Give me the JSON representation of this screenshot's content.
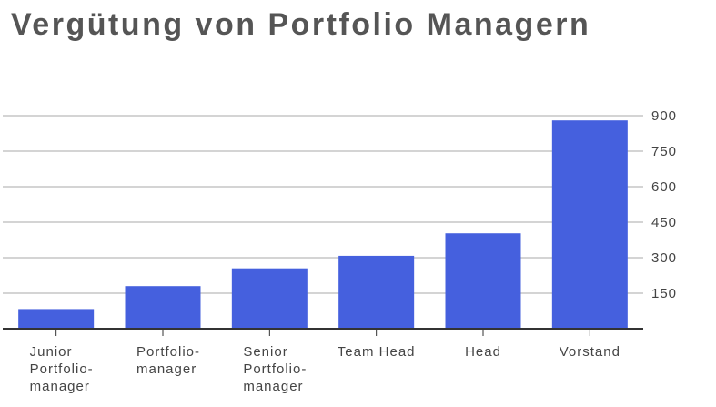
{
  "chart_data": {
    "type": "bar",
    "title": "Vergütung von Portfolio Managern",
    "categories": [
      [
        "Junior",
        "Portfolio-",
        "manager"
      ],
      [
        "Portfolio-",
        "manager"
      ],
      [
        "Senior",
        "Portfolio-",
        "manager"
      ],
      [
        "Team Head"
      ],
      [
        "Head"
      ],
      [
        "Vorstand"
      ]
    ],
    "values": [
      83,
      180,
      255,
      308,
      403,
      880
    ],
    "ylim": [
      0,
      900
    ],
    "yticks": [
      150,
      300,
      450,
      600,
      750,
      900
    ],
    "y_axis_position": "right",
    "grid": true,
    "bar_color": "#4560de",
    "xlabel": "",
    "ylabel": ""
  }
}
